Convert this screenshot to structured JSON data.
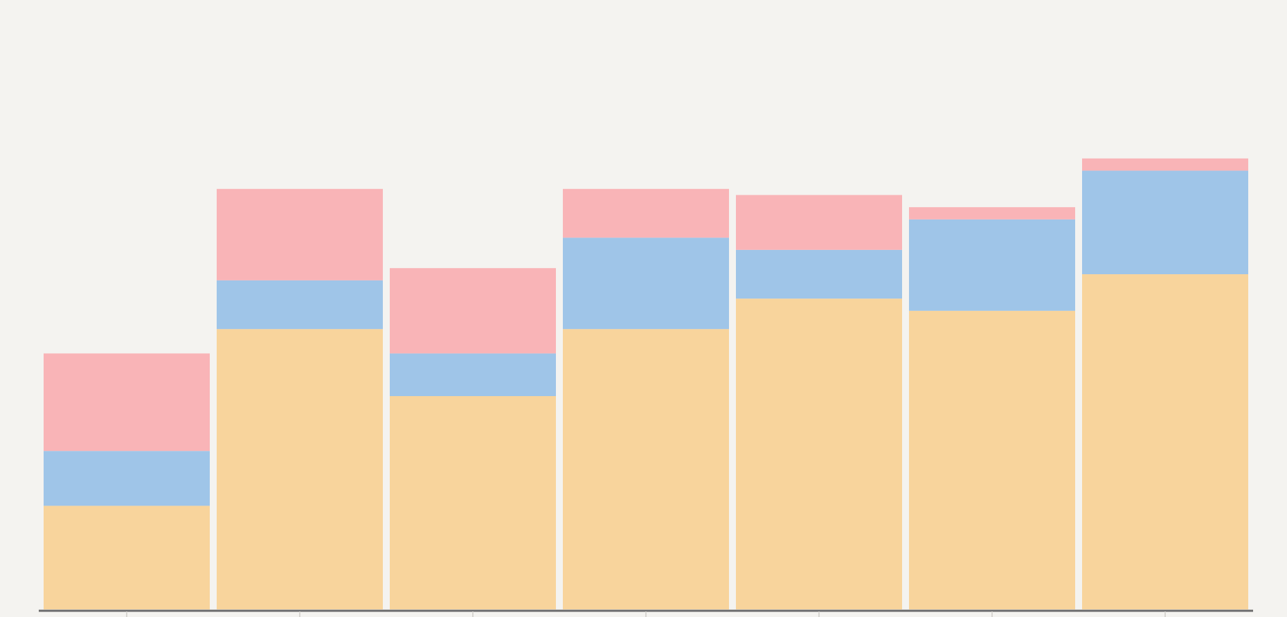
{
  "chart_data": {
    "type": "stacked_bar",
    "categories": [
      null,
      null,
      null,
      null,
      null,
      null,
      null
    ],
    "series": [
      {
        "color": "#f8d49c",
        "values": [
          17,
          46,
          35,
          46,
          51,
          49,
          55
        ]
      },
      {
        "color": "#9fc5e8",
        "values": [
          9,
          8,
          7,
          15,
          8,
          15,
          17
        ]
      },
      {
        "color": "#f9b4b7",
        "values": [
          16,
          15,
          14,
          8,
          9,
          2,
          2
        ]
      }
    ],
    "ylim": [
      0,
      100
    ]
  }
}
